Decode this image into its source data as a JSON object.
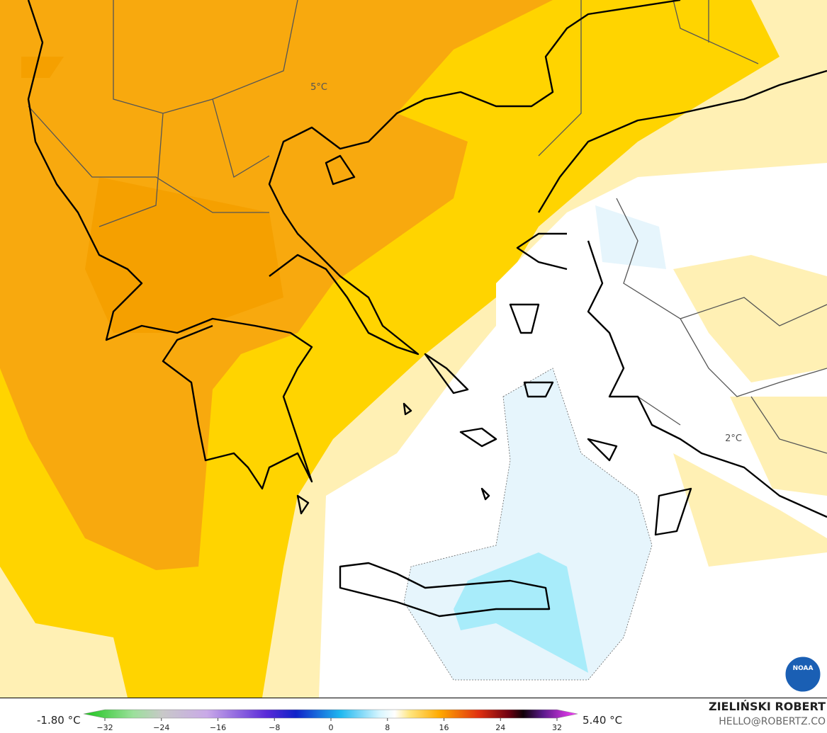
{
  "map": {
    "labels": [
      "5°C",
      "2°C"
    ]
  },
  "legend": {
    "min_label": "-1.80 °C",
    "max_label": "5.40 °C",
    "ticks": [
      {
        "value": -32,
        "label": "−32"
      },
      {
        "value": -24,
        "label": "−24"
      },
      {
        "value": -16,
        "label": "−16"
      },
      {
        "value": -8,
        "label": "−8"
      },
      0,
      8,
      16,
      24,
      32
    ]
  },
  "credit": {
    "name": "ZIELIŃSKI ROBERT",
    "email": "HELLO@ROBERTZ.CO"
  },
  "logo": "NOAA"
}
